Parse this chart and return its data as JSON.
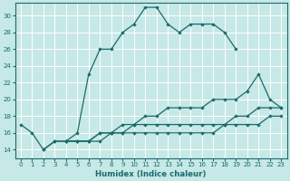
{
  "xlabel": "Humidex (Indice chaleur)",
  "xlim": [
    -0.5,
    23.5
  ],
  "ylim": [
    13,
    31.5
  ],
  "yticks": [
    14,
    16,
    18,
    20,
    22,
    24,
    26,
    28,
    30
  ],
  "xticks": [
    0,
    1,
    2,
    3,
    4,
    5,
    6,
    7,
    8,
    9,
    10,
    11,
    12,
    13,
    14,
    15,
    16,
    17,
    18,
    19,
    20,
    21,
    22,
    23
  ],
  "bg_color": "#c6e8e6",
  "line_color": "#1a6b6b",
  "grid_color": "#b0d4d4",
  "line1_x": [
    0,
    1,
    2,
    3,
    4,
    5,
    6,
    7,
    8,
    9,
    10,
    11,
    12,
    13,
    14,
    15,
    16,
    17,
    18,
    19
  ],
  "line1_y": [
    17,
    16,
    14,
    15,
    15,
    16,
    23,
    26,
    26,
    28,
    29,
    31,
    31,
    29,
    28,
    29,
    29,
    29,
    28,
    26
  ],
  "line2_x": [
    4,
    5,
    6,
    7,
    8,
    9,
    10,
    11,
    12,
    13,
    14,
    15,
    16,
    17,
    18,
    19,
    20,
    21,
    22,
    23
  ],
  "line2_y": [
    15,
    15,
    15,
    16,
    16,
    17,
    17,
    18,
    18,
    19,
    19,
    19,
    19,
    20,
    20,
    20,
    21,
    23,
    20,
    19
  ],
  "line3_x": [
    4,
    5,
    6,
    7,
    8,
    9,
    10,
    11,
    12,
    13,
    14,
    15,
    16,
    17,
    18,
    19,
    20,
    21,
    22,
    23
  ],
  "line3_y": [
    15,
    15,
    15,
    16,
    16,
    16,
    17,
    17,
    17,
    17,
    17,
    17,
    17,
    17,
    17,
    18,
    18,
    19,
    19,
    19
  ],
  "line4_x": [
    2,
    3,
    4,
    5,
    6,
    7,
    8,
    9,
    10,
    11,
    12,
    13,
    14,
    15,
    16,
    17,
    18,
    19,
    20,
    21,
    22,
    23
  ],
  "line4_y": [
    14,
    15,
    15,
    15,
    15,
    15,
    16,
    16,
    16,
    16,
    16,
    16,
    16,
    16,
    16,
    16,
    17,
    17,
    17,
    17,
    18,
    18
  ]
}
